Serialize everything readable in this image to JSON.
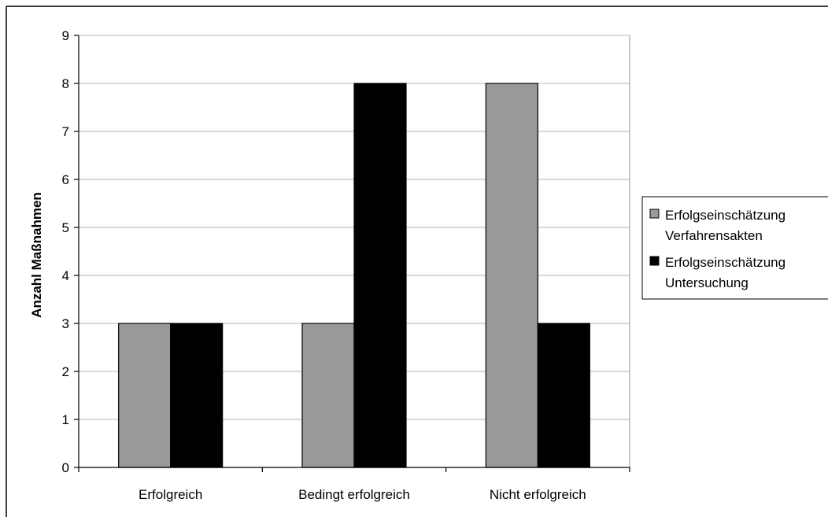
{
  "chart_data": {
    "type": "bar",
    "categories": [
      "Erfolgreich",
      "Bedingt erfolgreich",
      "Nicht erfolgreich"
    ],
    "series": [
      {
        "name_lines": [
          "Erfolgseinschätzung",
          "Verfahrensakten"
        ],
        "color": "#999999",
        "values": [
          3,
          3,
          8
        ]
      },
      {
        "name_lines": [
          "Erfolgseinschätzung",
          "Untersuchung"
        ],
        "color": "#000000",
        "values": [
          3,
          8,
          3
        ]
      }
    ],
    "ylabel": "Anzahl Maßnahmen",
    "ylim": [
      0,
      9
    ],
    "yticks": [
      "0",
      "1",
      "2",
      "3",
      "4",
      "5",
      "6",
      "7",
      "8",
      "9"
    ],
    "grid": true,
    "legend_position": "right"
  }
}
